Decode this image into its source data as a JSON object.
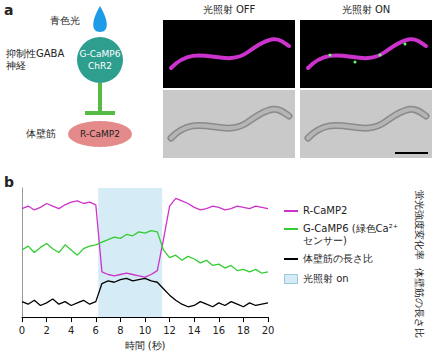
{
  "panel_a": {
    "label": "a",
    "light": "青色光",
    "neuron": {
      "label": "抑制性GABA神経",
      "markers": [
        "G-CaMP6",
        "ChR2"
      ]
    },
    "muscle": {
      "label": "体壁筋",
      "marker": "R-CaMP2"
    },
    "images": [
      {
        "title": "光照射 OFF"
      },
      {
        "title": "光照射 ON"
      }
    ]
  },
  "panel_b": {
    "label": "b"
  },
  "chart_data": {
    "type": "line",
    "xlabel": "時間 (秒)",
    "y_axis_labels": [
      "蛍光強度変化率",
      "体壁筋の長さ比"
    ],
    "x": [
      0,
      0.5,
      1,
      1.5,
      2,
      2.5,
      3,
      3.5,
      4,
      4.5,
      5,
      5.5,
      6,
      6.5,
      7,
      7.5,
      8,
      8.5,
      9,
      9.5,
      10,
      10.5,
      11,
      11.5,
      12,
      12.5,
      13,
      13.5,
      14,
      14.5,
      15,
      15.5,
      16,
      16.5,
      17,
      17.5,
      18,
      18.5,
      19,
      19.5,
      20
    ],
    "series": [
      {
        "name": "R-CaMP2",
        "color": "#cc33cc",
        "values": [
          84,
          86,
          83,
          85,
          88,
          86,
          84,
          87,
          89,
          90,
          88,
          89,
          87,
          35,
          33,
          32,
          33,
          34,
          33,
          32,
          31,
          33,
          36,
          60,
          86,
          92,
          90,
          88,
          85,
          83,
          84,
          86,
          85,
          83,
          84,
          86,
          85,
          84,
          86,
          85,
          84
        ]
      },
      {
        "name": "G-CaMP6 (緑色Ca²⁺センサー)",
        "color": "#33cc33",
        "values": [
          52,
          55,
          50,
          54,
          57,
          53,
          50,
          56,
          52,
          48,
          53,
          55,
          56,
          58,
          60,
          62,
          61,
          64,
          63,
          66,
          65,
          67,
          66,
          52,
          46,
          48,
          44,
          47,
          45,
          42,
          44,
          40,
          41,
          38,
          40,
          36,
          37,
          35,
          37,
          34,
          35
        ]
      },
      {
        "name": "体壁筋の長さ比",
        "color": "#000000",
        "values": [
          12,
          10,
          13,
          9,
          11,
          14,
          10,
          12,
          9,
          11,
          13,
          10,
          12,
          26,
          28,
          27,
          29,
          30,
          28,
          29,
          30,
          28,
          27,
          22,
          17,
          13,
          10,
          8,
          9,
          12,
          10,
          8,
          11,
          9,
          12,
          10,
          8,
          11,
          9,
          10,
          11
        ]
      }
    ],
    "light_on": {
      "label": "光照射 on",
      "start": 6.2,
      "end": 11.4,
      "color": "#d5ebf5"
    },
    "xlim": [
      0,
      20
    ],
    "xticks": [
      0,
      2,
      4,
      6,
      8,
      10,
      12,
      14,
      16,
      18,
      20
    ],
    "ylim": [
      0,
      100
    ],
    "yticks": [],
    "tick_labels": "x",
    "grid": false,
    "legend": "right"
  }
}
